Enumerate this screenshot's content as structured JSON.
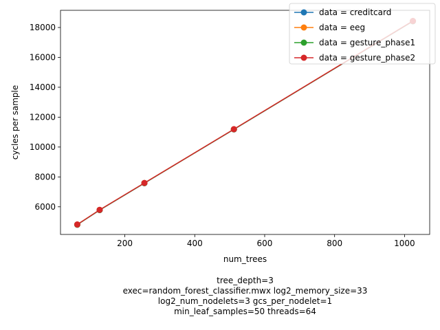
{
  "chart_data": {
    "type": "line",
    "xlabel": "num_trees",
    "ylabel": "cycles per sample",
    "xlim": [
      16,
      1072
    ],
    "ylim": [
      4150,
      19150
    ],
    "xticks": [
      200,
      400,
      600,
      800,
      1000
    ],
    "yticks": [
      6000,
      8000,
      10000,
      12000,
      14000,
      16000,
      18000
    ],
    "grid": false,
    "legend_position": "top-right",
    "x": [
      64,
      128,
      256,
      512,
      1024
    ],
    "series": [
      {
        "name": "data = creditcard",
        "color": "#1f77b4",
        "values": [
          4800,
          5780,
          7580,
          11180,
          18420
        ]
      },
      {
        "name": "data = eeg",
        "color": "#ff7f0e",
        "values": [
          4810,
          5790,
          7590,
          11190,
          18430
        ]
      },
      {
        "name": "data = gesture_phase1",
        "color": "#2ca02c",
        "values": [
          4805,
          5785,
          7585,
          11185,
          18425
        ]
      },
      {
        "name": "data = gesture_phase2",
        "color": "#d62728",
        "values": [
          4815,
          5795,
          7595,
          11195,
          18435
        ]
      }
    ]
  },
  "footnote": {
    "line1": "tree_depth=3",
    "line2": "exec=random_forest_classifier.mwx   log2_memory_size=33",
    "line3": "log2_num_nodelets=3   gcs_per_nodelet=1",
    "line4": "min_leaf_samples=50   threads=64"
  }
}
